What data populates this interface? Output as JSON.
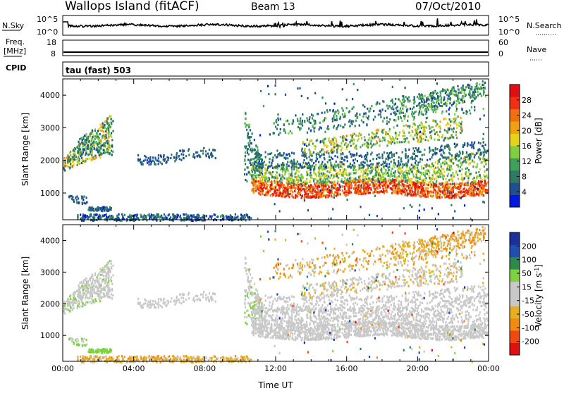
{
  "header": {
    "station": "Wallops Island (fitACF)",
    "beam": "Beam 13",
    "date": "07/Oct/2010"
  },
  "noise_panel": {
    "left_label": "N.Sky",
    "right_label": "N.Search",
    "left_ticks": [
      "10^5",
      "10^0"
    ],
    "right_ticks": [
      "10^5",
      "10^0"
    ]
  },
  "freq_panel": {
    "left_label_line1": "Freq.",
    "left_label_line2": "[MHz]",
    "right_label": "Nave",
    "left_ticks": [
      "18",
      "8"
    ],
    "right_ticks": [
      "60",
      "0"
    ]
  },
  "cpid_panel": {
    "label": "CPID",
    "mode_text": "tau (fast) 503"
  },
  "colors": {
    "power_scale": [
      "#0018e0",
      "#1f4f8f",
      "#2e7a65",
      "#3fa05a",
      "#7fcf3f",
      "#e6d21a",
      "#f0a010",
      "#f07010",
      "#f03010",
      "#e01010"
    ],
    "velocity_scale": [
      "#1a2fa0",
      "#1f4fb0",
      "#2e8a4a",
      "#7fd23f",
      "#c8c8c8",
      "#c8c8c8",
      "#e6b020",
      "#f08a10",
      "#f04a10",
      "#e01010"
    ],
    "ground_scatter": "#b4b4b4"
  },
  "chart_data": [
    {
      "type": "heatmap",
      "name": "power",
      "xlabel": "",
      "ylabel": "Slant Range [km]",
      "xlim": [
        0,
        24
      ],
      "ylim": [
        180,
        4500
      ],
      "y_ticks": [
        "1000",
        "2000",
        "3000",
        "4000"
      ],
      "colorbar_label": "Power [dB]",
      "colorbar_ticks": [
        "4",
        "8",
        "12",
        "16",
        "20",
        "24",
        "28"
      ],
      "colorbar_range": [
        0,
        32
      ]
    },
    {
      "type": "heatmap",
      "name": "velocity",
      "xlabel": "Time UT",
      "ylabel": "Slant Range [km]",
      "xlim": [
        0,
        24
      ],
      "ylim": [
        180,
        4500
      ],
      "x_ticks": [
        "00:00",
        "04:00",
        "08:00",
        "12:00",
        "16:00",
        "20:00",
        "00:00"
      ],
      "y_ticks": [
        "1000",
        "2000",
        "3000",
        "4000"
      ],
      "colorbar_label": "Velocity [m s",
      "colorbar_label_sup": "-1",
      "colorbar_label_end": "]",
      "colorbar_ticks": [
        "200",
        "100",
        "50",
        "15",
        "-15",
        "-50",
        "-100",
        "-200"
      ]
    }
  ]
}
